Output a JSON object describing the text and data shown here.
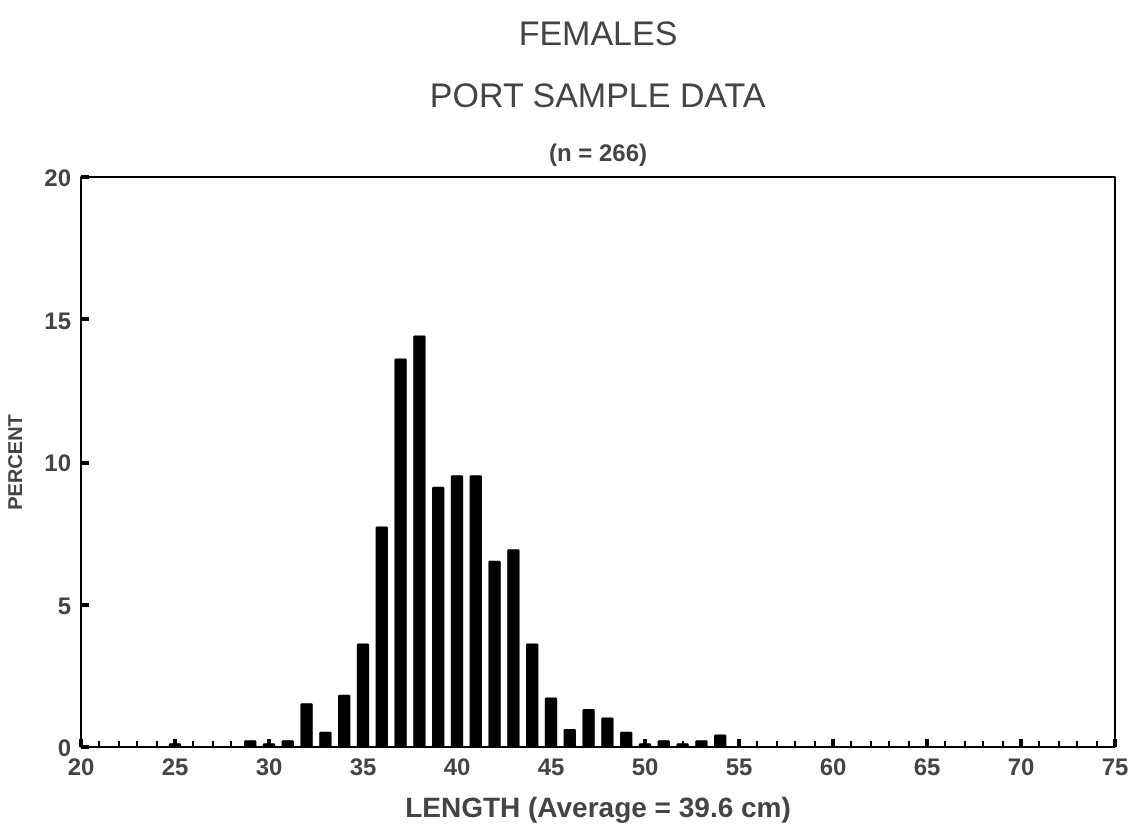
{
  "chart_data": {
    "type": "bar",
    "title": "FEMALES",
    "subtitle": "PORT SAMPLE DATA",
    "annotations": [
      "(n = 266)"
    ],
    "xlabel": "LENGTH (Average = 39.6 cm)",
    "ylabel": "PERCENT",
    "x": [
      25,
      29,
      30,
      31,
      32,
      33,
      34,
      35,
      36,
      37,
      38,
      39,
      40,
      41,
      42,
      43,
      44,
      45,
      46,
      47,
      48,
      49,
      50,
      51,
      52,
      53,
      54
    ],
    "values": [
      0.1,
      0.2,
      0.1,
      0.2,
      1.5,
      0.5,
      1.8,
      3.6,
      7.7,
      13.6,
      14.4,
      9.1,
      9.5,
      9.5,
      6.5,
      6.9,
      3.6,
      1.7,
      0.6,
      1.3,
      1.0,
      0.5,
      0.1,
      0.2,
      0.1,
      0.2,
      0.4
    ],
    "color": "#000000",
    "xlim": [
      20,
      75
    ],
    "xticks": [
      20,
      25,
      30,
      35,
      40,
      45,
      50,
      55,
      60,
      65,
      70,
      75
    ],
    "ylim": [
      0,
      20
    ],
    "yticks": [
      0,
      5,
      10,
      15,
      20
    ],
    "grid": false
  }
}
